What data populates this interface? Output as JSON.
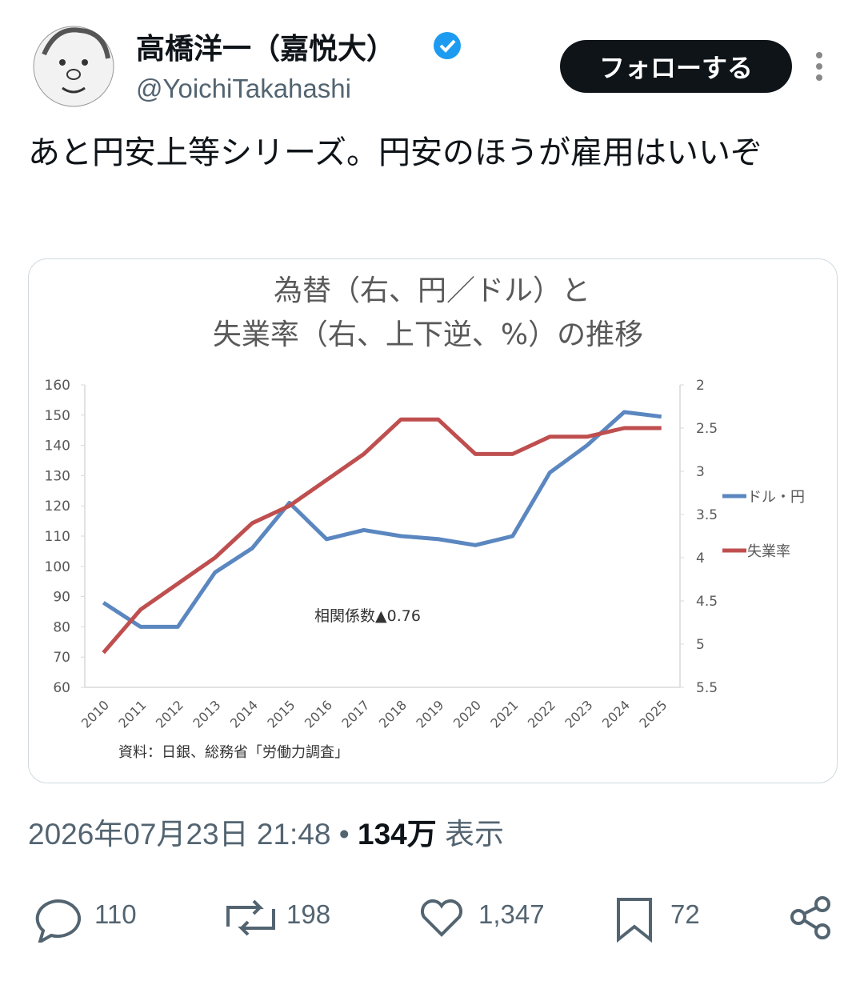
{
  "tweet": {
    "name": "高橋洋一（嘉悦大）",
    "handle": "@YoichiTakahashi",
    "follow": "フォローする",
    "text": "あと円安上等シリーズ。円安のほうが雇用はいいぞ",
    "timestamp": "2026年07月23日 21:48",
    "views": "134万",
    "views_label": "表示",
    "replies": "110",
    "retweets": "198",
    "likes": "1,347",
    "bookmarks": "72"
  },
  "chart_data": {
    "type": "line",
    "title": [
      "為替（右、円／ドル）と",
      "失業率（右、上下逆、%）の推移"
    ],
    "categories": [
      "2010",
      "2011",
      "2012",
      "2013",
      "2014",
      "2015",
      "2016",
      "2017",
      "2018",
      "2019",
      "2020",
      "2021",
      "2022",
      "2023",
      "2024",
      "2025"
    ],
    "series": [
      {
        "name": "ドル・円",
        "color": "#5b87c0",
        "values": [
          88,
          80,
          80,
          98,
          106,
          121,
          109,
          112,
          110,
          109,
          107,
          110,
          131,
          140,
          151,
          149.5
        ]
      },
      {
        "name": "失業率",
        "color": "#bf4f4f",
        "axis": "y2",
        "values": [
          5.1,
          4.6,
          4.3,
          4.0,
          3.6,
          3.4,
          3.1,
          2.8,
          2.4,
          2.4,
          2.8,
          2.8,
          2.6,
          2.6,
          2.5,
          2.5
        ]
      }
    ],
    "ylim": [
      60,
      160
    ],
    "yticks": [
      60,
      70,
      80,
      90,
      100,
      110,
      120,
      130,
      140,
      150,
      160
    ],
    "y2lim": [
      5.5,
      2
    ],
    "y2ticks": [
      5.5,
      5,
      4.5,
      4,
      3.5,
      3,
      2.5,
      2
    ],
    "annotation": "相関係数▲0.76",
    "source": "資料：日銀、総務省「労働力調査」",
    "legend": "right"
  }
}
